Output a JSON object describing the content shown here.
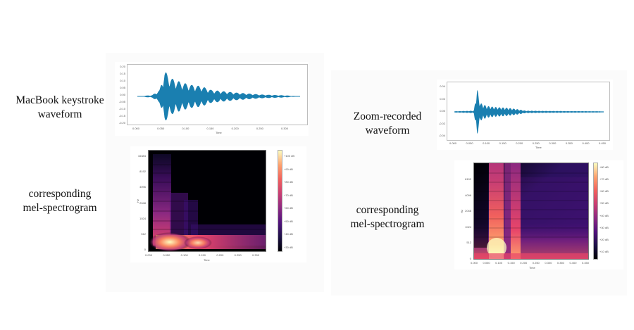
{
  "captions": {
    "left_waveform": [
      "MacBook keystroke",
      "waveform"
    ],
    "left_spectrogram": [
      "corresponding",
      "mel-spectrogram"
    ],
    "right_waveform": [
      "Zoom-recorded",
      "waveform"
    ],
    "right_spectrogram": [
      "corresponding",
      "mel-spectrogram"
    ]
  },
  "colors": {
    "waveform": "#1a7fb0",
    "background": "#ffffff",
    "panel": "#fbfbfb",
    "magma_low": "#000004",
    "magma_mid": "#b5367a",
    "magma_high": "#fcfdbf"
  },
  "chart_data": [
    {
      "id": "macbook-waveform",
      "type": "line",
      "title": "",
      "xlabel": "Time",
      "ylabel": "",
      "xticks": [
        "0.000",
        "0.050",
        "0.100",
        "0.150",
        "0.200",
        "0.250",
        "0.300"
      ],
      "yticks": [
        "0.20",
        "0.15",
        "0.10",
        "0.05",
        "0.00",
        "-0.05",
        "-0.10",
        "-0.15",
        "-0.20"
      ],
      "xlim": [
        0.0,
        0.33
      ],
      "ylim": [
        -0.22,
        0.22
      ],
      "description": "Keystroke audio waveform; onset ~0.035 s, peak amplitude ~0.20 near 0.055 s, decaying oscillation to ~0.32 s",
      "envelope": {
        "x": [
          0.0,
          0.03,
          0.045,
          0.055,
          0.07,
          0.09,
          0.11,
          0.13,
          0.15,
          0.2,
          0.25,
          0.3,
          0.33
        ],
        "amp": [
          0.0,
          0.01,
          0.05,
          0.2,
          0.14,
          0.11,
          0.09,
          0.08,
          0.05,
          0.03,
          0.015,
          0.008,
          0.0
        ]
      }
    },
    {
      "id": "macbook-mel-spectrogram",
      "type": "heatmap",
      "xlabel": "Time",
      "ylabel": "Hz",
      "xticks": [
        "0.000",
        "0.050",
        "0.100",
        "0.150",
        "0.200",
        "0.250",
        "0.300"
      ],
      "yticks": [
        "0",
        "512",
        "1024",
        "2048",
        "4096",
        "8192",
        "16384"
      ],
      "colorbar_ticks": [
        "+100 dB",
        "+90 dB",
        "+80 dB",
        "+70 dB",
        "+60 dB",
        "+50 dB",
        "+40 dB",
        "+30 dB"
      ],
      "colorbar_range": [
        25,
        105
      ],
      "colormap": "magma",
      "description": "Energy concentrated at low frequencies after onset ~0.02 s; hottest band at 0–512 Hz around 0.05–0.12 s; mid-frequency energy fades by ~0.12 s"
    },
    {
      "id": "zoom-waveform",
      "type": "line",
      "xlabel": "Time",
      "ylabel": "",
      "xticks": [
        "0.000",
        "0.050",
        "0.100",
        "0.150",
        "0.200",
        "0.250",
        "0.300",
        "0.350",
        "0.400",
        "0.450"
      ],
      "yticks": [
        "0.04",
        "0.02",
        "0.00",
        "-0.02",
        "-0.04"
      ],
      "xlim": [
        0.0,
        0.46
      ],
      "ylim": [
        -0.045,
        0.045
      ],
      "description": "Zoom-recorded keystroke; sharp peak ~0.04 near 0.07 s, smaller burst 0.1–0.2 s, low noise afterwards",
      "envelope": {
        "x": [
          0.0,
          0.06,
          0.07,
          0.08,
          0.1,
          0.13,
          0.16,
          0.19,
          0.22,
          0.3,
          0.45
        ],
        "amp": [
          0.001,
          0.002,
          0.04,
          0.015,
          0.01,
          0.008,
          0.007,
          0.005,
          0.002,
          0.0015,
          0.001
        ]
      }
    },
    {
      "id": "zoom-mel-spectrogram",
      "type": "heatmap",
      "xlabel": "Time",
      "ylabel": "Hz",
      "xticks": [
        "0.000",
        "0.050",
        "0.100",
        "0.150",
        "0.200",
        "0.250",
        "0.300",
        "0.350",
        "0.400",
        "0.450"
      ],
      "yticks": [
        "0",
        "512",
        "1024",
        "2048",
        "4096",
        "8192"
      ],
      "colorbar_ticks": [
        "+80 dB",
        "+70 dB",
        "+60 dB",
        "+50 dB",
        "+40 dB",
        "+30 dB",
        "+20 dB",
        "+10 dB"
      ],
      "colorbar_range": [
        5,
        85
      ],
      "colormap": "magma",
      "description": "Two bright vertical bands across all frequencies at ~0.06–0.11 s and ~0.13–0.17 s; brightest at low frequencies near 0.08 s; diffuse purple background elsewhere"
    }
  ]
}
